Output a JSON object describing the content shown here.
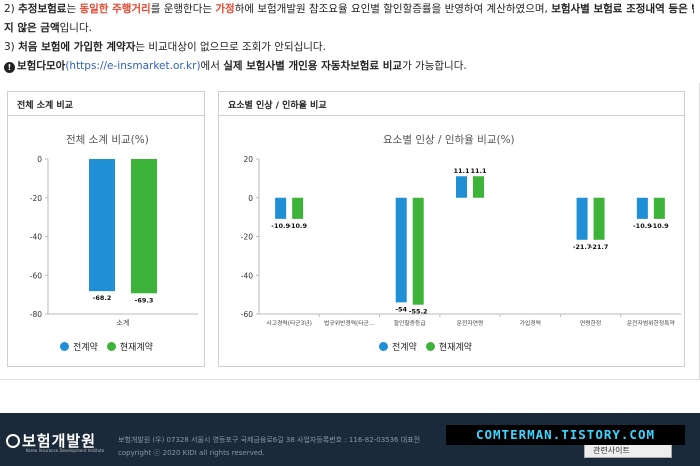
{
  "notes": {
    "line1": {
      "n": "2)",
      "a": "추정보험료",
      "b": "는 ",
      "c": "동일한 주행거리",
      "d": "를 운행한다는 ",
      "e": "가정",
      "f": "하에 보험개발원 참조요율 요인별 할인할증률을 반영하여 계산하였으며, ",
      "g": "보험사별 보험료 조정내역 등은 반영되"
    },
    "line2": {
      "a": "지 않은 금액",
      "b": "입니다."
    },
    "line3": {
      "n": "3)",
      "a": "처음 보험에 가입한 계약자",
      "b": "는 비교대상이 없으므로 조회가 안되십니다."
    },
    "line4": {
      "icon": "!",
      "a": "보험다모아",
      "link": "(https://e-insmarket.or.kr)",
      "b": "에서 ",
      "c": "실제 보험사별 개인용 자동차보험료 비교",
      "d": "가 가능합니다."
    }
  },
  "left_panel": {
    "header": "전체 소계 비교",
    "chart_title": "전체 소계 비교(%)"
  },
  "right_panel": {
    "header": "요소별 인상 / 인하율 비교",
    "chart_title": "요소별 인상 / 인하율 비교(%)"
  },
  "chart_data": [
    {
      "type": "bar",
      "title": "전체 소계 비교(%)",
      "categories": [
        "소계"
      ],
      "series": [
        {
          "name": "전계약",
          "values": [
            -68.2
          ],
          "color": "#1f8fd6"
        },
        {
          "name": "현재계약",
          "values": [
            -69.3
          ],
          "color": "#3db33a"
        }
      ],
      "ylim": [
        -80,
        0
      ],
      "yticks": [
        0,
        -20,
        -40,
        -60,
        -80
      ],
      "grid": false,
      "legend": "bottom"
    },
    {
      "type": "bar",
      "title": "요소별 인상 / 인하율 비교(%)",
      "categories": [
        "사고경력(타군3년)",
        "법규위반경력(타군…",
        "할인할증등급",
        "운전자연령",
        "가입경력",
        "연령한정",
        "운전자범위한정특약"
      ],
      "series": [
        {
          "name": "전계약",
          "values": [
            -10.9,
            null,
            -54,
            11.1,
            null,
            -21.7,
            -10.9
          ],
          "color": "#1f8fd6"
        },
        {
          "name": "현재계약",
          "values": [
            -10.9,
            null,
            -55.2,
            11.1,
            null,
            -21.7,
            -10.9
          ],
          "color": "#3db33a"
        }
      ],
      "ylim": [
        -60,
        20
      ],
      "yticks": [
        20,
        0,
        -20,
        -40,
        -60
      ],
      "grid": false,
      "legend": "bottom"
    }
  ],
  "footer": {
    "logo_text": "보험개발원",
    "logo_sub": "Korea Insurance Development Institute",
    "address": "보험개발원 (우) 07328 서울시 영등포구 국제금융로6길 38   사업자등록번호 : 116-82-03536   대표전",
    "copyright": "copyright ⓒ 2020 KIDI all rights reserved.",
    "select_label": "관련사이트"
  },
  "watermark": "COMTERMAN.TISTORY.COM"
}
